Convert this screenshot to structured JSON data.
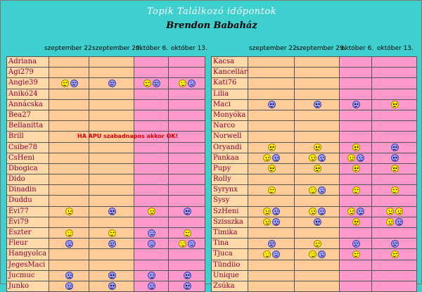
{
  "header": {
    "title": "Topik Találkozó időpontok",
    "subtitle": "Brendon Babaház"
  },
  "dates": [
    "szeptember 22.",
    "szeptember 29.",
    "október 6.",
    "október 13."
  ],
  "note": "HA APU szabadnapos akkor OK!",
  "legend": {
    "y": "happy smiley (yellow)",
    "b": "sad smiley (blue)"
  },
  "colors": {
    "background": "#3ecfcf",
    "name_cell": "#ffd9a8",
    "orange_col": "#ffcc99",
    "pink_col": "#ff99cc",
    "name_text": "#8b0033",
    "note_text": "#e00000"
  },
  "left_table": [
    {
      "name": "Adriana",
      "c": [
        "",
        "",
        "",
        ""
      ]
    },
    {
      "name": "Ági279",
      "c": [
        "",
        "",
        "",
        ""
      ]
    },
    {
      "name": "Angie39",
      "c": [
        "yb",
        "b",
        "yb",
        "yb"
      ]
    },
    {
      "name": "Anikó24",
      "c": [
        "",
        "",
        "",
        ""
      ]
    },
    {
      "name": "Annácska",
      "c": [
        "",
        "",
        "",
        ""
      ]
    },
    {
      "name": "Bea27",
      "c": [
        "",
        "",
        "",
        ""
      ]
    },
    {
      "name": "Bellanitta",
      "c": [
        "",
        "",
        "",
        ""
      ]
    },
    {
      "name": "Brill",
      "c": [
        "",
        "",
        "",
        ""
      ]
    },
    {
      "name": "Csibe78",
      "c": [
        "",
        "",
        "",
        ""
      ]
    },
    {
      "name": "CsHeni",
      "c": [
        "",
        "",
        "",
        ""
      ]
    },
    {
      "name": "Dbogica",
      "c": [
        "",
        "",
        "",
        ""
      ]
    },
    {
      "name": "Dido",
      "c": [
        "",
        "",
        "",
        ""
      ]
    },
    {
      "name": "Dinadin",
      "c": [
        "",
        "",
        "",
        ""
      ]
    },
    {
      "name": "Duddu",
      "c": [
        "",
        "",
        "",
        ""
      ]
    },
    {
      "name": "Évi77",
      "c": [
        "y",
        "b",
        "y",
        "b"
      ]
    },
    {
      "name": "Évi79",
      "c": [
        "",
        "",
        "",
        ""
      ]
    },
    {
      "name": "Eszter",
      "c": [
        "y",
        "y",
        "b",
        "y"
      ]
    },
    {
      "name": "Fleur",
      "c": [
        "b",
        "b",
        "b",
        "yb"
      ]
    },
    {
      "name": "Hangyolca",
      "c": [
        "",
        "",
        "",
        ""
      ]
    },
    {
      "name": "JegesMaci",
      "c": [
        "",
        "",
        "",
        ""
      ]
    },
    {
      "name": "Jucmuc",
      "c": [
        "b",
        "b",
        "b",
        "b"
      ]
    },
    {
      "name": "Junko",
      "c": [
        "b",
        "b",
        "b",
        "b"
      ]
    }
  ],
  "right_table": [
    {
      "name": "Kacsa",
      "c": [
        "",
        "",
        "",
        ""
      ]
    },
    {
      "name": "Kancellárka",
      "c": [
        "",
        "",
        "",
        ""
      ]
    },
    {
      "name": "Kati76",
      "c": [
        "",
        "",
        "",
        ""
      ]
    },
    {
      "name": "Lilia",
      "c": [
        "",
        "",
        "",
        ""
      ]
    },
    {
      "name": "Maci",
      "c": [
        "b",
        "b",
        "b",
        "y"
      ]
    },
    {
      "name": "Monyóka",
      "c": [
        "",
        "",
        "",
        ""
      ]
    },
    {
      "name": "Narco",
      "c": [
        "",
        "",
        "",
        ""
      ]
    },
    {
      "name": "Norwell",
      "c": [
        "",
        "",
        "",
        ""
      ]
    },
    {
      "name": "Oryandi",
      "c": [
        "y",
        "y",
        "y",
        "b"
      ]
    },
    {
      "name": "Pankaa",
      "c": [
        "yb",
        "yb",
        "yb",
        "b"
      ]
    },
    {
      "name": "Pupy",
      "c": [
        "y",
        "y",
        "y",
        "y"
      ]
    },
    {
      "name": "Rolly",
      "c": [
        "",
        "",
        "",
        ""
      ]
    },
    {
      "name": "Syrynx",
      "c": [
        "y",
        "yb",
        "y",
        "y"
      ]
    },
    {
      "name": "Sysy",
      "c": [
        "",
        "",
        "",
        ""
      ]
    },
    {
      "name": "SzHeni",
      "c": [
        "yb",
        "yb",
        "yb",
        "yy"
      ]
    },
    {
      "name": "Szisszka",
      "c": [
        "yb",
        "b",
        "y",
        "yb"
      ]
    },
    {
      "name": "Timika",
      "c": [
        "",
        "",
        "",
        ""
      ]
    },
    {
      "name": "Tina",
      "c": [
        "b",
        "y",
        "b",
        "b"
      ]
    },
    {
      "name": "Tjuca",
      "c": [
        "yb",
        "yb",
        "y",
        "y"
      ]
    },
    {
      "name": "Tündiio",
      "c": [
        "",
        "",
        "",
        ""
      ]
    },
    {
      "name": "Unique",
      "c": [
        "",
        "",
        "",
        ""
      ]
    },
    {
      "name": "Zsúka",
      "c": [
        "",
        "",
        "",
        ""
      ]
    }
  ]
}
